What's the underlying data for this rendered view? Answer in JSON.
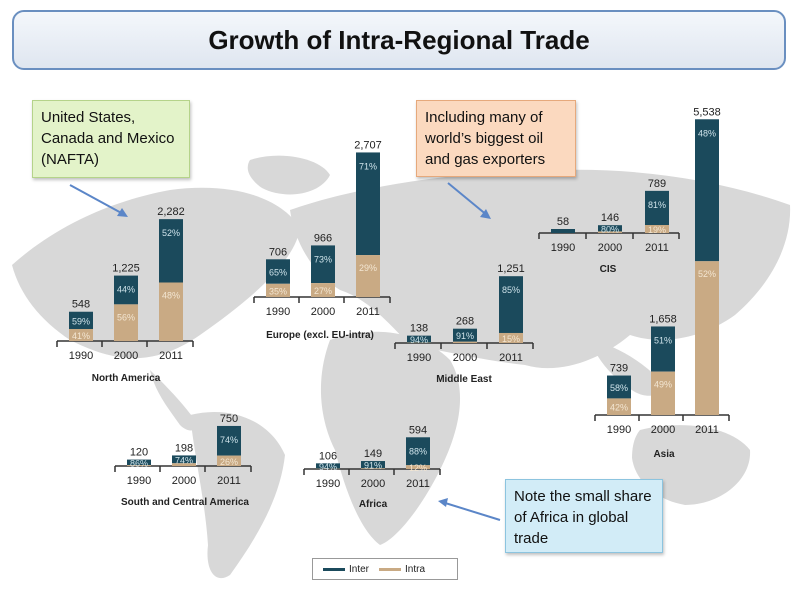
{
  "title": "Growth of Intra-Regional Trade",
  "callouts": {
    "nafta": "United States, Canada and Mexico (NAFTA)",
    "oil": "Including many of world’s biggest oil and gas exporters",
    "africa": "Note the small share of Africa in global trade"
  },
  "legend": {
    "inter": "Inter",
    "intra": "Intra"
  },
  "colors": {
    "inter": "#1b4a5c",
    "intra": "#c9aa84",
    "map": "#d8d8d8",
    "axis": "#333333"
  },
  "chart_data": [
    {
      "type": "bar",
      "region": "North America",
      "categories": [
        "1990",
        "2000",
        "2011"
      ],
      "totals": [
        548,
        1225,
        2282
      ],
      "total_labels": [
        "548",
        "1,225",
        "2,282"
      ],
      "inter_pct": [
        59,
        44,
        52
      ],
      "intra_pct": [
        41,
        56,
        48
      ],
      "inter_labels": [
        "59%",
        "44%",
        "52%"
      ],
      "intra_labels": [
        "41%",
        "56%",
        "48%"
      ]
    },
    {
      "type": "bar",
      "region": "Europe (excl. EU-intra)",
      "categories": [
        "1990",
        "2000",
        "2011"
      ],
      "totals": [
        706,
        966,
        2707
      ],
      "total_labels": [
        "706",
        "966",
        "2,707"
      ],
      "inter_pct": [
        65,
        73,
        71
      ],
      "intra_pct": [
        35,
        27,
        29
      ],
      "inter_labels": [
        "65%",
        "73%",
        "71%"
      ],
      "intra_labels": [
        "35%",
        "27%",
        "29%"
      ]
    },
    {
      "type": "bar",
      "region": "Middle East",
      "categories": [
        "1990",
        "2000",
        "2011"
      ],
      "totals": [
        138,
        268,
        1251
      ],
      "total_labels": [
        "138",
        "268",
        "1,251"
      ],
      "inter_pct": [
        94,
        91,
        85
      ],
      "intra_pct": [
        6,
        9,
        15
      ],
      "inter_labels": [
        "94%",
        "91%",
        "85%"
      ],
      "intra_labels": [
        "",
        "",
        "15%"
      ]
    },
    {
      "type": "bar",
      "region": "CIS",
      "categories": [
        "1990",
        "2000",
        "2011"
      ],
      "totals": [
        58,
        146,
        789
      ],
      "total_labels": [
        "58",
        "146",
        "789"
      ],
      "inter_pct": [
        100,
        80,
        81
      ],
      "intra_pct": [
        0,
        20,
        19
      ],
      "inter_labels": [
        "",
        "80%",
        "81%"
      ],
      "intra_labels": [
        "",
        "",
        "19%"
      ]
    },
    {
      "type": "bar",
      "region": "Asia",
      "categories": [
        "1990",
        "2000",
        "2011"
      ],
      "totals": [
        739,
        1658,
        5538
      ],
      "total_labels": [
        "739",
        "1,658",
        "5,538"
      ],
      "inter_pct": [
        58,
        51,
        48
      ],
      "intra_pct": [
        42,
        49,
        52
      ],
      "inter_labels": [
        "58%",
        "51%",
        "48%"
      ],
      "intra_labels": [
        "42%",
        "49%",
        "52%"
      ]
    },
    {
      "type": "bar",
      "region": "South and Central America",
      "categories": [
        "1990",
        "2000",
        "2011"
      ],
      "totals": [
        120,
        198,
        750
      ],
      "total_labels": [
        "120",
        "198",
        "750"
      ],
      "inter_pct": [
        86,
        74,
        74
      ],
      "intra_pct": [
        14,
        26,
        26
      ],
      "inter_labels": [
        "86%",
        "74%",
        "74%"
      ],
      "intra_labels": [
        "",
        "",
        "26%"
      ]
    },
    {
      "type": "bar",
      "region": "Africa",
      "categories": [
        "1990",
        "2000",
        "2011"
      ],
      "totals": [
        106,
        149,
        594
      ],
      "total_labels": [
        "106",
        "149",
        "594"
      ],
      "inter_pct": [
        94,
        91,
        88
      ],
      "intra_pct": [
        6,
        9,
        12
      ],
      "inter_labels": [
        "94%",
        "91%",
        "88%"
      ],
      "intra_labels": [
        "",
        "",
        "12%"
      ]
    }
  ]
}
